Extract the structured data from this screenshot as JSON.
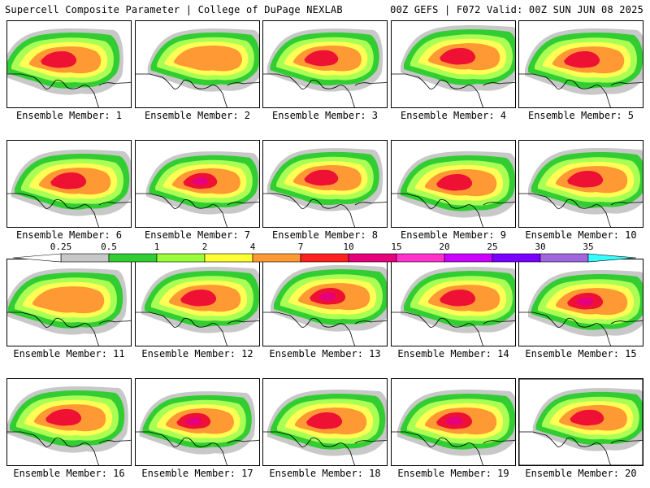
{
  "header": {
    "left_title": "Supercell Composite Parameter | College of DuPage NEXLAB",
    "right_title": "00Z GEFS | F072 Valid: 00Z SUN JUN 08 2025"
  },
  "member_label": "Ensemble Member:",
  "members": [
    {
      "number": "1"
    },
    {
      "number": "2"
    },
    {
      "number": "3"
    },
    {
      "number": "4"
    },
    {
      "number": "5"
    },
    {
      "number": "6"
    },
    {
      "number": "7"
    },
    {
      "number": "8"
    },
    {
      "number": "9"
    },
    {
      "number": "10"
    },
    {
      "number": "11"
    },
    {
      "number": "12"
    },
    {
      "number": "13"
    },
    {
      "number": "14"
    },
    {
      "number": "15"
    },
    {
      "number": "16"
    },
    {
      "number": "17"
    },
    {
      "number": "18"
    },
    {
      "number": "19"
    },
    {
      "number": "20"
    }
  ],
  "colorbar": {
    "levels": [
      "0.25",
      "0.5",
      "1",
      "2",
      "4",
      "7",
      "10",
      "15",
      "20",
      "25",
      "30",
      "35"
    ],
    "colors": [
      "#c8c8c8",
      "#32cd32",
      "#9aff3a",
      "#ffff33",
      "#ff9933",
      "#ff2020",
      "#e6007e",
      "#ff33cc",
      "#cc00ff",
      "#7a00ff",
      "#a066e0",
      "#33ffff"
    ]
  },
  "map_colors": {
    "gray": "#c8c8c8",
    "green": "#32cd32",
    "lightgreen": "#aaff55",
    "yellow": "#ffff55",
    "orange": "#ff9933",
    "red": "#ee1133",
    "magenta": "#e6007e",
    "coastline": "#000000"
  }
}
